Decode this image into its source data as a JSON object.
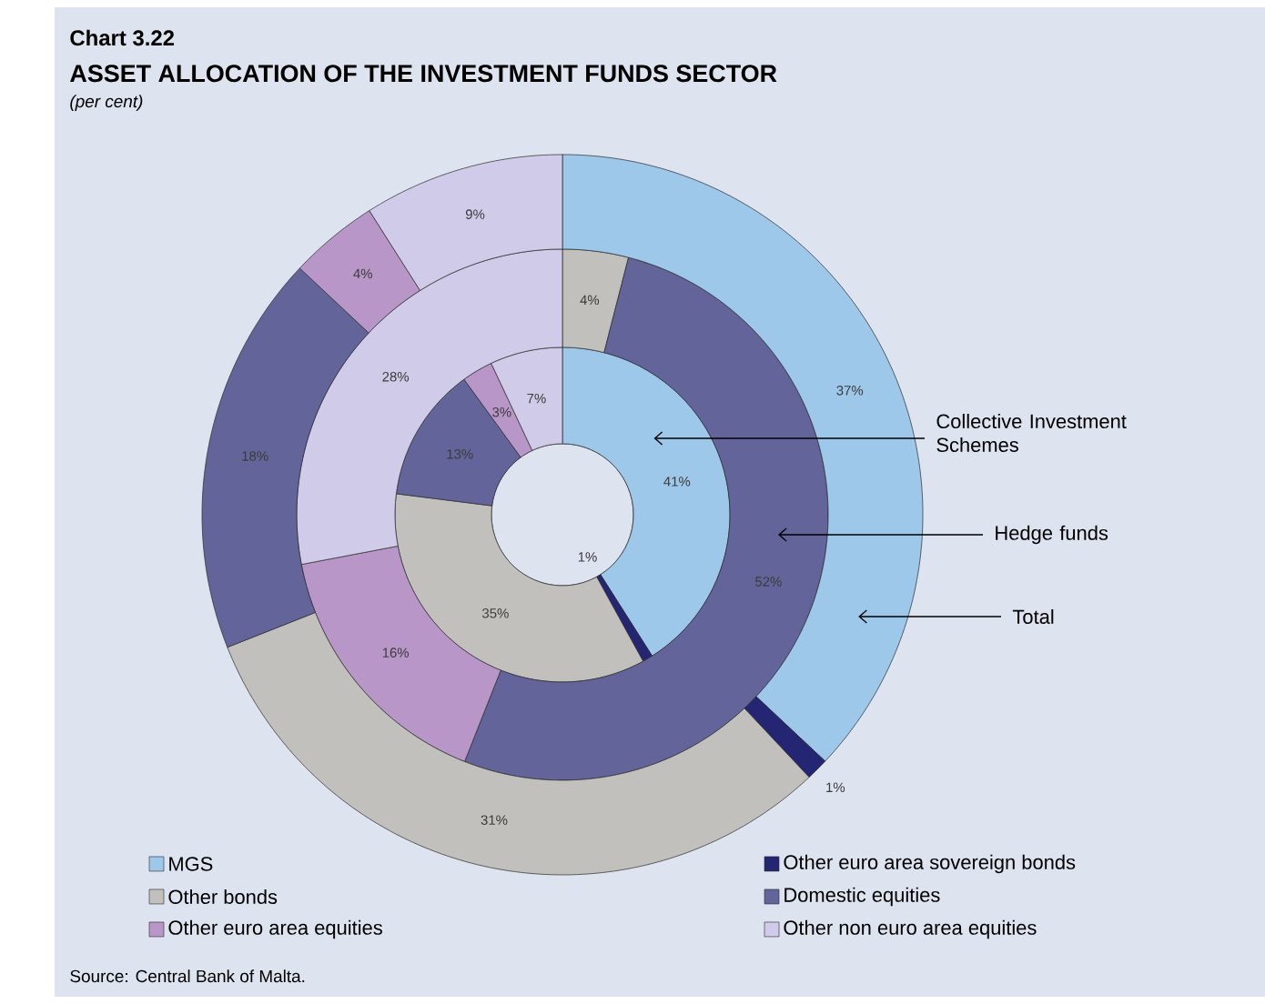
{
  "chart_data": {
    "type": "donut",
    "title": "Chart 3.22",
    "subtitle": "ASSET ALLOCATION OF THE INVESTMENT FUNDS SECTOR",
    "annotations": [
      "(per cent)",
      "Source: Central Bank of Malta."
    ],
    "categories": [
      "MGS",
      "Other euro area sovereign bonds",
      "Other bonds",
      "Domestic equities",
      "Other euro area equities",
      "Other non euro area equities"
    ],
    "colors": [
      "#9dc8ea",
      "#252673",
      "#c2c0bd",
      "#636499",
      "#b897c8",
      "#cfcbe8"
    ],
    "series": [
      {
        "name": "Collective Investment Schemes",
        "values": [
          41,
          1,
          35,
          13,
          3,
          7
        ],
        "value_labels": [
          "41%",
          "1%",
          "35%",
          "13%",
          "3%",
          "7%"
        ]
      },
      {
        "name": "Hedge funds",
        "values": [
          0,
          0,
          4,
          52,
          16,
          28
        ],
        "value_labels": [
          null,
          null,
          "4%",
          "52%",
          "16%",
          "28%"
        ]
      },
      {
        "name": "Total",
        "values": [
          37,
          1,
          31,
          18,
          4,
          9
        ],
        "value_labels": [
          "37%",
          "1%",
          "31%",
          "18%",
          "4%",
          "9%"
        ]
      }
    ],
    "legend": "bottom"
  }
}
